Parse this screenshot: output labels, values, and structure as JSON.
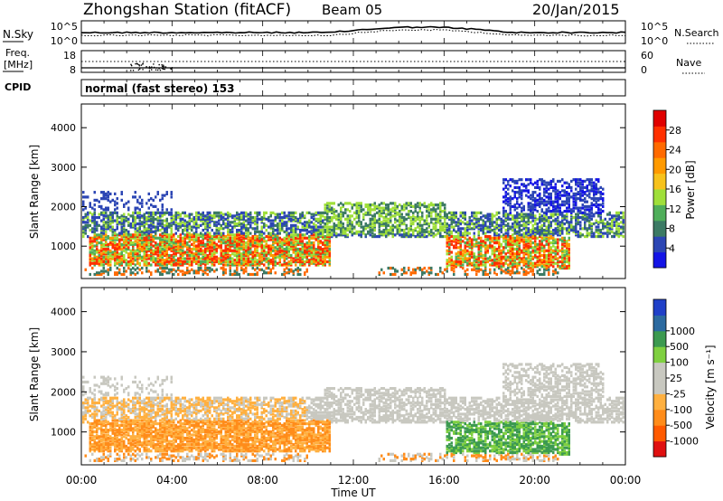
{
  "header": {
    "station": "Zhongshan Station (fitACF)",
    "beam": "Beam 05",
    "date": "20/Jan/2015"
  },
  "noise_panel": {
    "left_label": "N.Sky",
    "right_label": "N.Search",
    "ticks_left": [
      "10^5",
      "10^0"
    ],
    "ticks_right": [
      "10^5",
      "10^0"
    ]
  },
  "freq_panel": {
    "left_label_line1": "Freq.",
    "left_label_line2": "[MHz]",
    "right_label": "Nave",
    "ticks_left": [
      "18",
      "8"
    ],
    "ticks_right": [
      "60",
      "0"
    ]
  },
  "cpid": {
    "label": "CPID",
    "text": "normal (fast stereo) 153"
  },
  "colors": {
    "power_scale": [
      "#1414e6",
      "#2c46b4",
      "#3c7a64",
      "#4fae5a",
      "#9fdf3a",
      "#f7c21c",
      "#ff9a00",
      "#ff6a00",
      "#ff3000",
      "#e00000"
    ],
    "velocity_scale": [
      "#e01010",
      "#ff5a00",
      "#ff8c1a",
      "#ffb040",
      "#c8c8c0",
      "#c8c8c0",
      "#7fd040",
      "#3c9a50",
      "#2c6aa0",
      "#2040c8"
    ],
    "ground_scatter": "#c8c8c0"
  },
  "chart_data": [
    {
      "type": "heatmap",
      "name": "power",
      "ylabel": "Slant Range [km]",
      "y_ticks": [
        "1000",
        "2000",
        "3000",
        "4000"
      ],
      "ylim": [
        180,
        4600
      ],
      "xlim_hours": [
        0,
        24
      ],
      "colorbar": {
        "label": "Power [dB]",
        "ticks": [
          "4",
          "8",
          "12",
          "16",
          "20",
          "24",
          "28"
        ],
        "range": [
          0,
          32
        ]
      }
    },
    {
      "type": "heatmap",
      "name": "velocity",
      "ylabel": "Slant Range [km]",
      "y_ticks": [
        "1000",
        "2000",
        "3000",
        "4000"
      ],
      "ylim": [
        180,
        4600
      ],
      "xlim_hours": [
        0,
        24
      ],
      "colorbar": {
        "label": "Velocity [m s⁻¹]",
        "ticks": [
          "-1000",
          "-500",
          "-100",
          "-25",
          "25",
          "100",
          "500",
          "1000"
        ]
      },
      "x_ticks": [
        "00:00",
        "04:00",
        "08:00",
        "12:00",
        "16:00",
        "20:00",
        "00:00"
      ],
      "xlabel": "Time UT"
    }
  ]
}
